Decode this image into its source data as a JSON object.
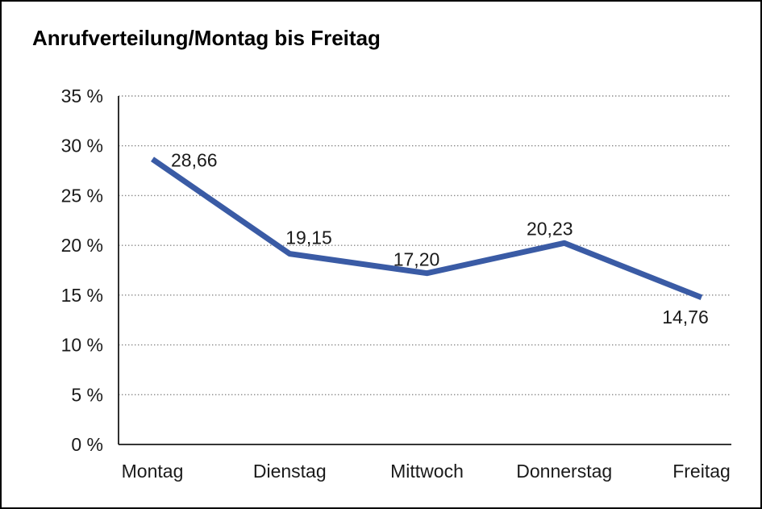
{
  "window": {
    "background_color": "#FFFFFF",
    "border_color": "#000000"
  },
  "chart_data": {
    "type": "line",
    "title": "Anrufverteilung/Montag bis Freitag",
    "categories": [
      "Montag",
      "Dienstag",
      "Mittwoch",
      "Donnerstag",
      "Freitag"
    ],
    "series": [
      {
        "name": "Anrufverteilung",
        "values": [
          28.66,
          19.15,
          17.2,
          20.23,
          14.76
        ],
        "value_labels": [
          "28,66",
          "19,15",
          "17,20",
          "20,23",
          "14,76"
        ]
      }
    ],
    "xlabel": "",
    "ylabel": "",
    "y_tick_labels": [
      "0 %",
      "5 %",
      "10 %",
      "15 %",
      "20 %",
      "25 %",
      "30 %",
      "35 %"
    ],
    "ylim": [
      0,
      35
    ],
    "y_step": 5,
    "unit": "%",
    "decimal_separator": ",",
    "grid": "horizontal-dotted",
    "gridline_color": "#888888",
    "axis_color": "#1a1a1a",
    "line_color": "#3A5BA5",
    "legend_position": "none"
  }
}
